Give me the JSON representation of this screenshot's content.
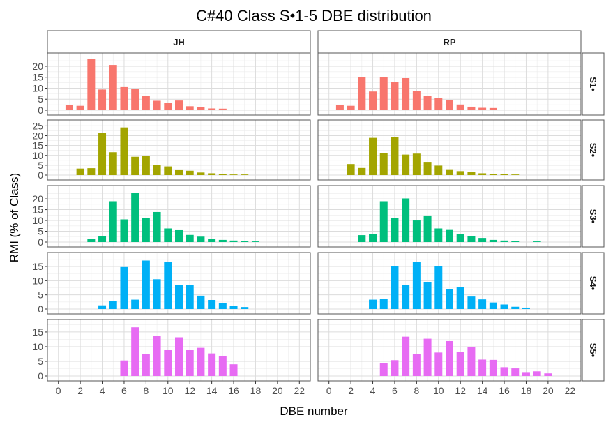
{
  "chart_data": {
    "type": "bar",
    "title": "C#40 Class S•1-5 DBE distribution",
    "xlabel": "DBE number",
    "ylabel": "RMI (% of Class)",
    "facet_columns": [
      "JH",
      "RP"
    ],
    "facet_rows": [
      "S1•",
      "S2•",
      "S3•",
      "S4•",
      "S5•"
    ],
    "x_ticks": [
      0,
      2,
      4,
      6,
      8,
      10,
      12,
      14,
      16,
      18,
      20,
      22
    ],
    "xlim": [
      -1,
      23
    ],
    "grid": true,
    "legend": "none",
    "row_colors": [
      "#F8766D",
      "#A3A500",
      "#00BF7D",
      "#00B0F6",
      "#E76BF3"
    ],
    "rows": [
      {
        "ylim": [
          0,
          23.8
        ],
        "y_ticks": [
          0,
          5,
          10,
          15,
          20
        ],
        "panels": {
          "JH": {
            "x": [
              1,
              2,
              3,
              4,
              5,
              6,
              7,
              8,
              9,
              10,
              11,
              12,
              13,
              14,
              15
            ],
            "values": [
              2.3,
              2.0,
              23.2,
              9.4,
              20.6,
              10.5,
              9.6,
              6.4,
              4.3,
              3.2,
              4.4,
              1.8,
              1.3,
              0.8,
              0.7
            ]
          },
          "RP": {
            "x": [
              1,
              2,
              3,
              4,
              5,
              6,
              7,
              8,
              9,
              10,
              11,
              12,
              13,
              14,
              15
            ],
            "values": [
              2.3,
              2.0,
              15.2,
              8.5,
              15.2,
              12.8,
              14.6,
              8.7,
              6.4,
              5.5,
              4.5,
              2.6,
              1.6,
              1.1,
              1.0
            ]
          }
        }
      },
      {
        "ylim": [
          0,
          25.5
        ],
        "y_ticks": [
          0,
          5,
          10,
          15,
          20,
          25
        ],
        "panels": {
          "JH": {
            "x": [
              2,
              3,
              4,
              5,
              6,
              7,
              8,
              9,
              10,
              11,
              12,
              13,
              14,
              15,
              16,
              17
            ],
            "values": [
              3.3,
              3.5,
              21.3,
              11.6,
              24.2,
              9.3,
              9.9,
              5.3,
              4.4,
              2.5,
              2.2,
              1.3,
              0.9,
              0.5,
              0.3,
              0.3
            ]
          },
          "RP": {
            "x": [
              2,
              3,
              4,
              5,
              6,
              7,
              8,
              9,
              10,
              11,
              12,
              13,
              14,
              15,
              16,
              17
            ],
            "values": [
              5.6,
              3.6,
              18.9,
              11.0,
              19.2,
              10.4,
              10.9,
              6.7,
              4.8,
              2.6,
              2.0,
              1.5,
              0.9,
              0.5,
              0.4,
              0.3
            ]
          }
        }
      },
      {
        "ylim": [
          0,
          23.9
        ],
        "y_ticks": [
          0,
          5,
          10,
          15,
          20
        ],
        "panels": {
          "JH": {
            "x": [
              3,
              4,
              5,
              6,
              7,
              8,
              9,
              10,
              11,
              12,
              13,
              14,
              15,
              16,
              17,
              18
            ],
            "values": [
              1.3,
              2.8,
              18.9,
              10.5,
              22.7,
              11.1,
              13.9,
              6.3,
              5.5,
              3.3,
              2.5,
              1.3,
              1.0,
              0.7,
              0.4,
              0.3
            ]
          },
          "RP": {
            "x": [
              3,
              4,
              5,
              6,
              7,
              8,
              9,
              10,
              11,
              12,
              13,
              14,
              15,
              16,
              17,
              19
            ],
            "values": [
              3.2,
              3.8,
              18.9,
              11.1,
              20.2,
              10.0,
              12.3,
              6.3,
              5.6,
              3.6,
              2.8,
              1.9,
              1.0,
              0.7,
              0.4,
              0.3
            ]
          }
        }
      },
      {
        "ylim": [
          0,
          18.2
        ],
        "y_ticks": [
          0,
          5,
          10,
          15
        ],
        "panels": {
          "JH": {
            "x": [
              4,
              5,
              6,
              7,
              8,
              9,
              10,
              11,
              12,
              13,
              14,
              15,
              16,
              17
            ],
            "values": [
              1.3,
              2.9,
              14.8,
              3.3,
              17.1,
              10.5,
              16.7,
              8.4,
              8.6,
              4.7,
              3.2,
              2.1,
              1.2,
              0.7
            ]
          },
          "RP": {
            "x": [
              4,
              5,
              6,
              7,
              8,
              9,
              10,
              11,
              12,
              13,
              14,
              15,
              16,
              17,
              18
            ],
            "values": [
              3.3,
              3.6,
              15.0,
              8.6,
              16.5,
              9.5,
              15.2,
              7.0,
              7.8,
              4.4,
              3.4,
              2.3,
              1.6,
              0.8,
              0.5
            ]
          }
        }
      },
      {
        "ylim": [
          0,
          17.6
        ],
        "y_ticks": [
          0,
          5,
          10,
          15
        ],
        "panels": {
          "JH": {
            "x": [
              6,
              7,
              8,
              9,
              10,
              11,
              12,
              13,
              14,
              15,
              16
            ],
            "values": [
              5.3,
              16.6,
              7.5,
              13.6,
              8.8,
              13.2,
              8.8,
              9.6,
              7.7,
              6.9,
              4.0
            ]
          },
          "RP": {
            "x": [
              5,
              6,
              7,
              8,
              9,
              10,
              11,
              12,
              13,
              14,
              15,
              16,
              17,
              18,
              19,
              20
            ],
            "values": [
              4.4,
              5.4,
              13.4,
              7.5,
              12.7,
              8.0,
              11.9,
              8.3,
              10.0,
              5.6,
              5.5,
              3.0,
              2.6,
              1.1,
              1.6,
              0.9
            ]
          }
        }
      }
    ]
  }
}
